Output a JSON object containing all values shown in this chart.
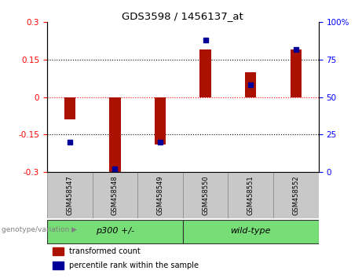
{
  "title": "GDS3598 / 1456137_at",
  "samples": [
    "GSM458547",
    "GSM458548",
    "GSM458549",
    "GSM458550",
    "GSM458551",
    "GSM458552"
  ],
  "red_values": [
    -0.09,
    -0.31,
    -0.19,
    0.19,
    0.1,
    0.19
  ],
  "blue_values": [
    20,
    2,
    20,
    88,
    58,
    82
  ],
  "group_label": "genotype/variation",
  "group_p300_label": "p300 +/-",
  "group_wt_label": "wild-type",
  "group_p300_indices": [
    0,
    1,
    2
  ],
  "group_wt_indices": [
    3,
    4,
    5
  ],
  "ylim_left": [
    -0.3,
    0.3
  ],
  "ylim_right": [
    0,
    100
  ],
  "yticks_left": [
    -0.3,
    -0.15,
    0,
    0.15,
    0.3
  ],
  "yticks_right": [
    0,
    25,
    50,
    75,
    100
  ],
  "hlines_black": [
    -0.15,
    0.15
  ],
  "hline_red": 0,
  "red_color": "#AA1100",
  "blue_color": "#000099",
  "bar_width": 0.25,
  "legend_red": "transformed count",
  "legend_blue": "percentile rank within the sample",
  "axis_bg": "#ffffff",
  "tick_bg": "#c8c8c8",
  "green_color": "#77DD77"
}
